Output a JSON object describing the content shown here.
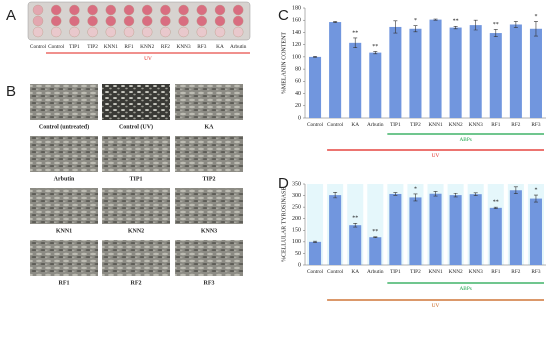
{
  "panel_labels": [
    "A",
    "B",
    "C",
    "D"
  ],
  "plate": {
    "labels": [
      "Control",
      "Control",
      "TIP1",
      "TIP2",
      "KNN1",
      "RF1",
      "KNN2",
      "RF2",
      "KNN3",
      "RF3",
      "KA",
      "Arbutin"
    ],
    "group_label": "UV"
  },
  "micrographs": [
    "Control (untreated)",
    "Control (UV)",
    "KA",
    "Arbutin",
    "TIP1",
    "TIP2",
    "KNN1",
    "KNN2",
    "KNN3",
    "RF1",
    "RF2",
    "RF3"
  ],
  "chart_data": [
    {
      "type": "bar",
      "ylabel": "%MELANIN CONTENT",
      "categories": [
        "Control",
        "Control",
        "KA",
        "Arbutin",
        "TIP1",
        "TIP2",
        "KNN1",
        "KNN2",
        "KNN3",
        "RF1",
        "RF2",
        "RF3"
      ],
      "values": [
        100,
        157,
        123,
        107,
        149,
        146,
        161,
        148,
        152,
        139,
        153,
        146
      ],
      "errors": [
        1,
        1,
        8,
        2,
        10,
        5,
        1,
        2,
        8,
        6,
        5,
        12
      ],
      "significance": [
        null,
        null,
        "**",
        "**",
        null,
        "*",
        null,
        "**",
        null,
        "**",
        null,
        "*"
      ],
      "color": "#7196de",
      "ylim": [
        0,
        180
      ],
      "yticks": [
        0,
        20,
        40,
        60,
        80,
        100,
        120,
        140,
        160,
        180
      ],
      "annotations": [
        {
          "text": "ABPs",
          "color": "#1aa34a"
        },
        {
          "text": "UV",
          "color": "#e0201b"
        }
      ]
    },
    {
      "type": "bar",
      "ylabel": "%CELLULAR TYROSINASE",
      "categories": [
        "Control",
        "Control",
        "KA",
        "Arbutin",
        "TIP1",
        "TIP2",
        "KNN1",
        "KNN2",
        "KNN3",
        "RF1",
        "RF2",
        "RF3"
      ],
      "values": [
        100,
        302,
        172,
        120,
        307,
        292,
        308,
        302,
        306,
        247,
        323,
        287
      ],
      "errors": [
        3,
        12,
        8,
        2,
        6,
        15,
        10,
        8,
        6,
        3,
        15,
        15
      ],
      "significance": [
        null,
        null,
        "**",
        "**",
        null,
        "*",
        null,
        null,
        null,
        "**",
        null,
        "*"
      ],
      "color": "#7196de",
      "ylim": [
        0,
        350
      ],
      "yticks": [
        0,
        50,
        100,
        150,
        200,
        250,
        300,
        350
      ],
      "annotations": [
        {
          "text": "ABPs",
          "color": "#1aa34a"
        },
        {
          "text": "UV",
          "color": "#c55a11"
        }
      ]
    }
  ]
}
